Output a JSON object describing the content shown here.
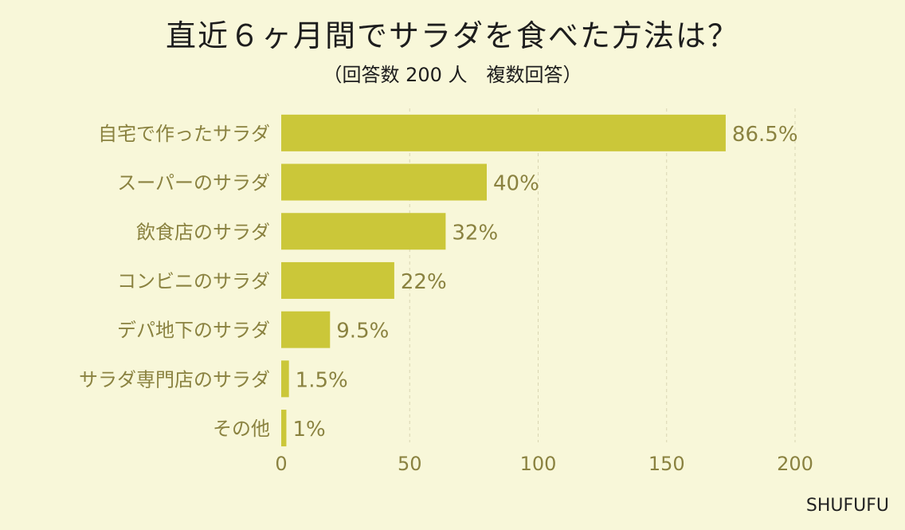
{
  "chart_data": {
    "type": "bar",
    "orientation": "horizontal",
    "title": "直近６ヶ月間でサラダを食べた方法は？",
    "subtitle": "（回答数 200 人　複数回答）",
    "categories": [
      "自宅で作ったサラダ",
      "スーパーのサラダ",
      "飲食店のサラダ",
      "コンビニのサラダ",
      "デパ地下のサラダ",
      "サラダ専門店のサラダ",
      "その他"
    ],
    "values": [
      173,
      80,
      64,
      44,
      19,
      3,
      2
    ],
    "value_labels": [
      "86.5%",
      "40%",
      "32%",
      "22%",
      "9.5%",
      "1.5%",
      "1%"
    ],
    "xlim": [
      0,
      200
    ],
    "xticks": [
      "0",
      "50",
      "100",
      "150",
      "200"
    ],
    "grid": true,
    "bar_color": "#cbc739",
    "label_color": "#8a8240",
    "legend": "none"
  },
  "watermark": "SHUFUFU"
}
